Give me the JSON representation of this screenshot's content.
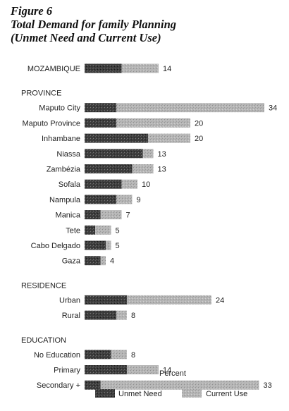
{
  "figure": {
    "number": "Figure 6",
    "title_line1": "Total Demand for family Planning",
    "title_line2": "(Unmet Need and Current Use)"
  },
  "chart_data": {
    "type": "bar",
    "orientation": "horizontal",
    "stacked": true,
    "xlabel": "Percent",
    "legend_placement": "bottom",
    "grid": false,
    "xlim": [
      0,
      34
    ],
    "series": [
      {
        "name": "Unmet Need",
        "color": "#3a3a3a",
        "pattern": "dark-speckled"
      },
      {
        "name": "Current Use",
        "color": "#b4b4b4",
        "pattern": "light-speckled"
      }
    ],
    "groups": [
      {
        "label": "",
        "rows": [
          {
            "category": "MOZAMBIQUE",
            "unmet": 7,
            "current": 7,
            "total": 14
          }
        ]
      },
      {
        "label": "PROVINCE",
        "rows": [
          {
            "category": "Maputo City",
            "unmet": 6,
            "current": 28,
            "total": 34
          },
          {
            "category": "Maputo Province",
            "unmet": 6,
            "current": 14,
            "total": 20
          },
          {
            "category": "Inhambane",
            "unmet": 12,
            "current": 8,
            "total": 20
          },
          {
            "category": "Niassa",
            "unmet": 11,
            "current": 2,
            "total": 13
          },
          {
            "category": "Zambézia",
            "unmet": 9,
            "current": 4,
            "total": 13
          },
          {
            "category": "Sofala",
            "unmet": 7,
            "current": 3,
            "total": 10
          },
          {
            "category": "Nampula",
            "unmet": 6,
            "current": 3,
            "total": 9
          },
          {
            "category": "Manica",
            "unmet": 3,
            "current": 4,
            "total": 7
          },
          {
            "category": "Tete",
            "unmet": 2,
            "current": 3,
            "total": 5
          },
          {
            "category": "Cabo Delgado",
            "unmet": 4,
            "current": 1,
            "total": 5
          },
          {
            "category": "Gaza",
            "unmet": 3,
            "current": 1,
            "total": 4
          }
        ]
      },
      {
        "label": "RESIDENCE",
        "rows": [
          {
            "category": "Urban",
            "unmet": 8,
            "current": 16,
            "total": 24
          },
          {
            "category": "Rural",
            "unmet": 6,
            "current": 2,
            "total": 8
          }
        ]
      },
      {
        "label": "EDUCATION",
        "rows": [
          {
            "category": "No Education",
            "unmet": 5,
            "current": 3,
            "total": 8
          },
          {
            "category": "Primary",
            "unmet": 8,
            "current": 6,
            "total": 14
          },
          {
            "category": "Secondary +",
            "unmet": 3,
            "current": 30,
            "total": 33
          }
        ]
      }
    ]
  }
}
